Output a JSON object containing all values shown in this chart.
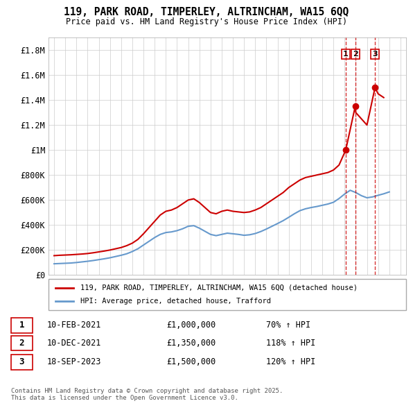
{
  "title_line1": "119, PARK ROAD, TIMPERLEY, ALTRINCHAM, WA15 6QQ",
  "title_line2": "Price paid vs. HM Land Registry's House Price Index (HPI)",
  "ylabel": "",
  "xlabel": "",
  "ylim": [
    0,
    1900000
  ],
  "yticks": [
    0,
    200000,
    400000,
    600000,
    800000,
    1000000,
    1200000,
    1400000,
    1600000,
    1800000
  ],
  "ytick_labels": [
    "£0",
    "£200K",
    "£400K",
    "£600K",
    "£800K",
    "£1M",
    "£1.2M",
    "£1.4M",
    "£1.6M",
    "£1.8M"
  ],
  "xlim_start": 1994.5,
  "xlim_end": 2026.5,
  "red_line_color": "#cc0000",
  "blue_line_color": "#6699cc",
  "marker_color": "#cc0000",
  "dashed_line_color": "#cc0000",
  "legend_label_red": "119, PARK ROAD, TIMPERLEY, ALTRINCHAM, WA15 6QQ (detached house)",
  "legend_label_blue": "HPI: Average price, detached house, Trafford",
  "transactions": [
    {
      "num": 1,
      "date": "10-FEB-2021",
      "price": "£1,000,000",
      "pct": "70% ↑ HPI",
      "year": 2021.1
    },
    {
      "num": 2,
      "date": "10-DEC-2021",
      "price": "£1,350,000",
      "pct": "118% ↑ HPI",
      "year": 2021.95
    },
    {
      "num": 3,
      "date": "18-SEP-2023",
      "price": "£1,500,000",
      "pct": "120% ↑ HPI",
      "year": 2023.72
    }
  ],
  "transaction_values": [
    1000000,
    1350000,
    1500000
  ],
  "footnote": "Contains HM Land Registry data © Crown copyright and database right 2025.\nThis data is licensed under the Open Government Licence v3.0.",
  "red_hpi_data_x": [
    1995,
    1995.5,
    1996,
    1996.5,
    1997,
    1997.5,
    1998,
    1998.5,
    1999,
    1999.5,
    2000,
    2000.5,
    2001,
    2001.5,
    2002,
    2002.5,
    2003,
    2003.5,
    2004,
    2004.5,
    2005,
    2005.5,
    2006,
    2006.5,
    2007,
    2007.5,
    2008,
    2008.5,
    2009,
    2009.5,
    2010,
    2010.5,
    2011,
    2011.5,
    2012,
    2012.5,
    2013,
    2013.5,
    2014,
    2014.5,
    2015,
    2015.5,
    2016,
    2016.5,
    2017,
    2017.5,
    2018,
    2018.5,
    2019,
    2019.5,
    2020,
    2020.5,
    2021.1,
    2021.95,
    2022,
    2022.5,
    2023,
    2023.72,
    2024,
    2024.5
  ],
  "red_hpi_data_y": [
    155000,
    158000,
    160000,
    162000,
    165000,
    168000,
    172000,
    178000,
    185000,
    192000,
    200000,
    210000,
    220000,
    235000,
    255000,
    285000,
    330000,
    380000,
    430000,
    480000,
    510000,
    520000,
    540000,
    570000,
    600000,
    610000,
    580000,
    540000,
    500000,
    490000,
    510000,
    520000,
    510000,
    505000,
    500000,
    505000,
    520000,
    540000,
    570000,
    600000,
    630000,
    660000,
    700000,
    730000,
    760000,
    780000,
    790000,
    800000,
    810000,
    820000,
    840000,
    880000,
    1000000,
    1350000,
    1300000,
    1250000,
    1200000,
    1500000,
    1450000,
    1420000
  ],
  "blue_hpi_data_x": [
    1995,
    1995.5,
    1996,
    1996.5,
    1997,
    1997.5,
    1998,
    1998.5,
    1999,
    1999.5,
    2000,
    2000.5,
    2001,
    2001.5,
    2002,
    2002.5,
    2003,
    2003.5,
    2004,
    2004.5,
    2005,
    2005.5,
    2006,
    2006.5,
    2007,
    2007.5,
    2008,
    2008.5,
    2009,
    2009.5,
    2010,
    2010.5,
    2011,
    2011.5,
    2012,
    2012.5,
    2013,
    2013.5,
    2014,
    2014.5,
    2015,
    2015.5,
    2016,
    2016.5,
    2017,
    2017.5,
    2018,
    2018.5,
    2019,
    2019.5,
    2020,
    2020.5,
    2021,
    2021.5,
    2022,
    2022.5,
    2023,
    2023.5,
    2024,
    2024.5,
    2025
  ],
  "blue_hpi_data_y": [
    90000,
    92000,
    94000,
    96000,
    100000,
    105000,
    110000,
    116000,
    123000,
    130000,
    138000,
    148000,
    158000,
    170000,
    188000,
    210000,
    240000,
    270000,
    300000,
    325000,
    340000,
    345000,
    355000,
    370000,
    390000,
    395000,
    375000,
    350000,
    325000,
    315000,
    325000,
    335000,
    330000,
    325000,
    318000,
    322000,
    332000,
    348000,
    368000,
    390000,
    412000,
    435000,
    462000,
    490000,
    515000,
    530000,
    540000,
    548000,
    558000,
    568000,
    582000,
    612000,
    648000,
    678000,
    660000,
    635000,
    618000,
    625000,
    638000,
    650000,
    665000
  ]
}
